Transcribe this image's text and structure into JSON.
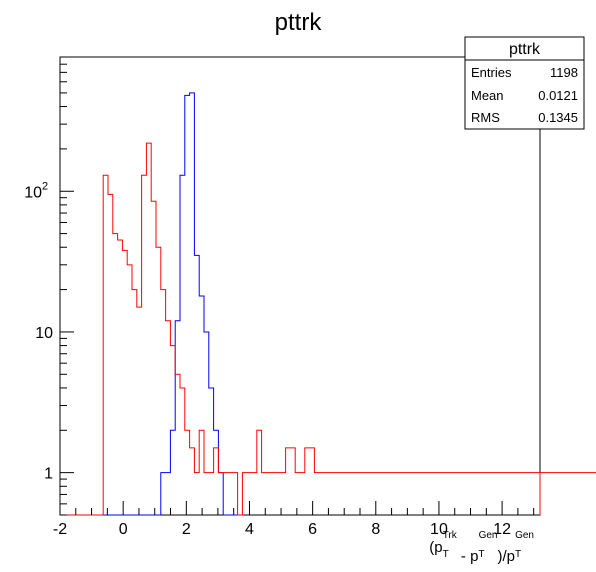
{
  "chart_data": {
    "type": "step-histogram",
    "title": "pttrk",
    "xlabel": {
      "prefix": "(p",
      "sub1": "T",
      "sup1": "Trk",
      "mid": " - p",
      "sub2": "T",
      "sup2": "Gen",
      "slash": ")/p",
      "sub3": "T",
      "sup3": "Gen"
    },
    "xlim": [
      -2,
      13.2
    ],
    "ylim": [
      0.5,
      900
    ],
    "ylog": true,
    "x_ticks": [
      {
        "value": -2,
        "label": "-2"
      },
      {
        "value": 0,
        "label": "0"
      },
      {
        "value": 2,
        "label": "2"
      },
      {
        "value": 4,
        "label": "4"
      },
      {
        "value": 6,
        "label": "6"
      },
      {
        "value": 8,
        "label": "8"
      },
      {
        "value": 10,
        "label": "10"
      },
      {
        "value": 12,
        "label": "12"
      }
    ],
    "y_ticks": [
      {
        "value": 1,
        "label": "1",
        "kind": "plain"
      },
      {
        "value": 10,
        "label": "10",
        "kind": "plain"
      },
      {
        "value": 100,
        "label": "10",
        "exp": "2",
        "kind": "power"
      }
    ],
    "stats_box": {
      "title": "pttrk",
      "rows": [
        {
          "label": "Entries",
          "value": "1198"
        },
        {
          "label": "Mean",
          "value": "0.0121"
        },
        {
          "label": "RMS",
          "value": "0.1345"
        }
      ]
    },
    "series": [
      {
        "color": "#0000ff",
        "x_start": -2,
        "bin_width": 0.152,
        "values": [
          0,
          0,
          0,
          0,
          0,
          0,
          0,
          0,
          0,
          0,
          0,
          0,
          0,
          0,
          0,
          0,
          0,
          0,
          0,
          0,
          0,
          1,
          1,
          2,
          12,
          130,
          480,
          500,
          35,
          18,
          10,
          4,
          2,
          1,
          0,
          0,
          0
        ]
      },
      {
        "color": "#ff0000",
        "x_start": -2,
        "bin_width": 0.152,
        "values": [
          0,
          0,
          0,
          0,
          0,
          0,
          0,
          0,
          0,
          130,
          95,
          50,
          45,
          38,
          30,
          20,
          15,
          130,
          220,
          85,
          40,
          20,
          12,
          8,
          5,
          4,
          2,
          1.5,
          1,
          2,
          1,
          1,
          1.5,
          1,
          1,
          1,
          1,
          0,
          1,
          1,
          1,
          2,
          1,
          1,
          1,
          1,
          1,
          1.5,
          1.5,
          1,
          1,
          1.5,
          1.5,
          1,
          1,
          1,
          1,
          1,
          1,
          1,
          1,
          1,
          1,
          1,
          1,
          1,
          1,
          1,
          1,
          1,
          1,
          1,
          1,
          1,
          1,
          1,
          1,
          1,
          1,
          1,
          1,
          1,
          1,
          1,
          1,
          1,
          1,
          1,
          1,
          1,
          1,
          1,
          1,
          1,
          1,
          1,
          1,
          1,
          1,
          1,
          1,
          1,
          1,
          1,
          1,
          1,
          1,
          1,
          1,
          1,
          1,
          1,
          1,
          1,
          1,
          1,
          1,
          1,
          1,
          1,
          1,
          1,
          1,
          1,
          1,
          1,
          1,
          1,
          1,
          1,
          1
        ]
      }
    ]
  }
}
